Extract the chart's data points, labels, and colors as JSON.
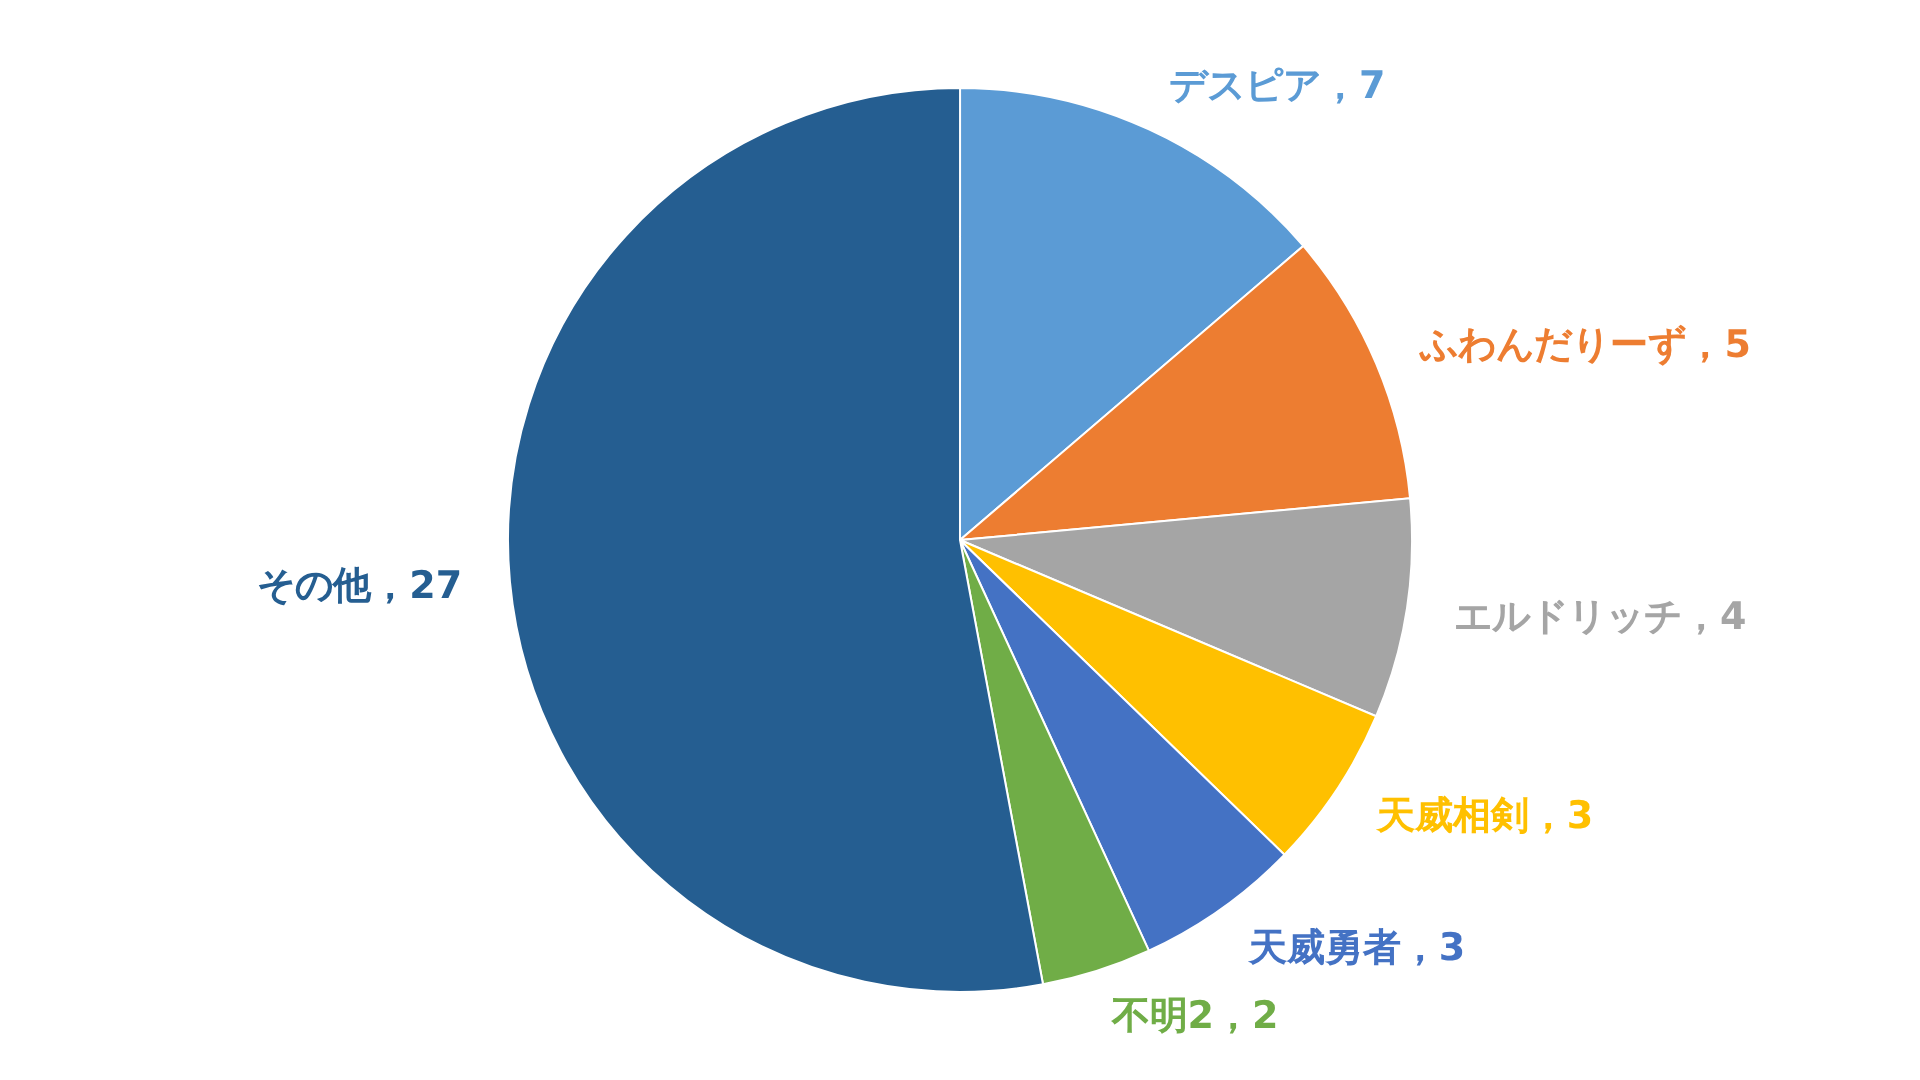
{
  "chart_data": {
    "type": "pie",
    "categories": [
      "デスピア",
      "ふわんだりーず",
      "エルドリッチ",
      "天威相剣",
      "天威勇者",
      "不明2",
      "その他"
    ],
    "values": [
      7,
      5,
      4,
      3,
      3,
      2,
      27
    ],
    "colors": [
      "#5b9bd5",
      "#ed7d31",
      "#a5a5a5",
      "#ffc000",
      "#4472c4",
      "#70ad47",
      "#255e91"
    ],
    "value_labels": [
      "，7",
      "，5",
      "，4",
      "，3",
      "，3",
      "，2",
      "，27"
    ],
    "legend": false
  }
}
